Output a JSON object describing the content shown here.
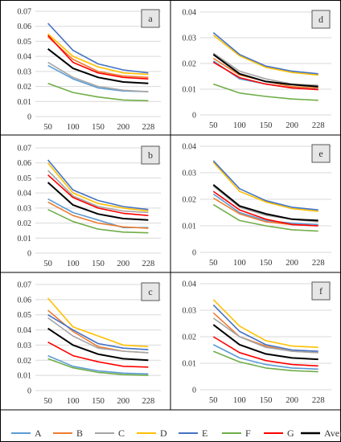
{
  "legend": [
    {
      "name": "A",
      "color": "#5b9bd5"
    },
    {
      "name": "B",
      "color": "#ed7d31"
    },
    {
      "name": "C",
      "color": "#a5a5a5"
    },
    {
      "name": "D",
      "color": "#ffc000"
    },
    {
      "name": "E",
      "color": "#4472c4"
    },
    {
      "name": "F",
      "color": "#70ad47"
    },
    {
      "name": "G",
      "color": "#ff0000"
    },
    {
      "name": "Average",
      "color": "#000000"
    }
  ],
  "chart_data": [
    {
      "type": "line",
      "panel": "a",
      "x": [
        "50",
        "100",
        "150",
        "200",
        "228"
      ],
      "ylim": [
        0,
        0.07
      ],
      "yticks": [
        "0",
        "0.01",
        "0.02",
        "0.03",
        "0.04",
        "0.05",
        "0.06",
        "0.07"
      ],
      "grid": true,
      "series": [
        {
          "name": "A",
          "values": [
            0.034,
            0.025,
            0.019,
            0.017,
            0.0165
          ]
        },
        {
          "name": "B",
          "values": [
            0.053,
            0.038,
            0.03,
            0.027,
            0.026
          ]
        },
        {
          "name": "C",
          "values": [
            0.036,
            0.026,
            0.02,
            0.0175,
            0.0165
          ]
        },
        {
          "name": "D",
          "values": [
            0.055,
            0.04,
            0.033,
            0.029,
            0.028
          ]
        },
        {
          "name": "E",
          "values": [
            0.062,
            0.044,
            0.035,
            0.031,
            0.029
          ]
        },
        {
          "name": "F",
          "values": [
            0.022,
            0.016,
            0.013,
            0.011,
            0.0105
          ]
        },
        {
          "name": "G",
          "values": [
            0.054,
            0.036,
            0.029,
            0.026,
            0.025
          ]
        },
        {
          "name": "Average",
          "values": [
            0.045,
            0.032,
            0.026,
            0.023,
            0.022
          ]
        }
      ]
    },
    {
      "type": "line",
      "panel": "d",
      "x": [
        "50",
        "100",
        "150",
        "200",
        "228"
      ],
      "ylim": [
        0,
        0.04
      ],
      "yticks": [
        "0",
        "0.01",
        "0.02",
        "0.03",
        "0.04"
      ],
      "grid": true,
      "series": [
        {
          "name": "A",
          "values": [
            0.021,
            0.014,
            0.012,
            0.0105,
            0.01
          ]
        },
        {
          "name": "B",
          "values": [
            0.022,
            0.0155,
            0.013,
            0.011,
            0.0105
          ]
        },
        {
          "name": "C",
          "values": [
            0.024,
            0.017,
            0.014,
            0.012,
            0.0115
          ]
        },
        {
          "name": "D",
          "values": [
            0.031,
            0.023,
            0.0185,
            0.0165,
            0.0155
          ]
        },
        {
          "name": "E",
          "values": [
            0.032,
            0.0235,
            0.019,
            0.017,
            0.016
          ]
        },
        {
          "name": "F",
          "values": [
            0.012,
            0.0085,
            0.0072,
            0.0062,
            0.0057
          ]
        },
        {
          "name": "G",
          "values": [
            0.0205,
            0.0145,
            0.012,
            0.0105,
            0.0098
          ]
        },
        {
          "name": "Average",
          "values": [
            0.0235,
            0.016,
            0.013,
            0.0118,
            0.011
          ]
        }
      ]
    },
    {
      "type": "line",
      "panel": "b",
      "x": [
        "50",
        "100",
        "150",
        "200",
        "228"
      ],
      "ylim": [
        0,
        0.07
      ],
      "yticks": [
        "0",
        "0.01",
        "0.02",
        "0.03",
        "0.04",
        "0.05",
        "0.06",
        "0.07"
      ],
      "grid": true,
      "series": [
        {
          "name": "A",
          "values": [
            0.036,
            0.027,
            0.022,
            0.017,
            0.017
          ]
        },
        {
          "name": "B",
          "values": [
            0.034,
            0.025,
            0.02,
            0.0175,
            0.0165
          ]
        },
        {
          "name": "C",
          "values": [
            0.055,
            0.038,
            0.031,
            0.028,
            0.027
          ]
        },
        {
          "name": "D",
          "values": [
            0.06,
            0.04,
            0.033,
            0.03,
            0.028
          ]
        },
        {
          "name": "E",
          "values": [
            0.062,
            0.042,
            0.035,
            0.031,
            0.029
          ]
        },
        {
          "name": "F",
          "values": [
            0.029,
            0.021,
            0.016,
            0.014,
            0.0135
          ]
        },
        {
          "name": "G",
          "values": [
            0.052,
            0.037,
            0.03,
            0.0265,
            0.025
          ]
        },
        {
          "name": "Average",
          "values": [
            0.047,
            0.032,
            0.026,
            0.023,
            0.022
          ]
        }
      ]
    },
    {
      "type": "line",
      "panel": "e",
      "x": [
        "50",
        "100",
        "150",
        "200",
        "228"
      ],
      "ylim": [
        0,
        0.04
      ],
      "yticks": [
        "0",
        "0.01",
        "0.02",
        "0.03",
        "0.04"
      ],
      "grid": true,
      "series": [
        {
          "name": "A",
          "values": [
            0.022,
            0.015,
            0.012,
            0.011,
            0.0105
          ]
        },
        {
          "name": "B",
          "values": [
            0.0205,
            0.0145,
            0.0115,
            0.0105,
            0.01
          ]
        },
        {
          "name": "C",
          "values": [
            0.025,
            0.017,
            0.014,
            0.0125,
            0.0115
          ]
        },
        {
          "name": "D",
          "values": [
            0.034,
            0.023,
            0.019,
            0.0165,
            0.0155
          ]
        },
        {
          "name": "E",
          "values": [
            0.0345,
            0.024,
            0.0195,
            0.017,
            0.016
          ]
        },
        {
          "name": "F",
          "values": [
            0.018,
            0.012,
            0.01,
            0.0085,
            0.008
          ]
        },
        {
          "name": "G",
          "values": [
            0.023,
            0.016,
            0.0125,
            0.0105,
            0.01
          ]
        },
        {
          "name": "Average",
          "values": [
            0.0255,
            0.0175,
            0.0145,
            0.0125,
            0.012
          ]
        }
      ]
    },
    {
      "type": "line",
      "panel": "c",
      "x": [
        "50",
        "100",
        "150",
        "200",
        "228"
      ],
      "ylim": [
        0,
        0.07
      ],
      "yticks": [
        "0",
        "0.01",
        "0.02",
        "0.03",
        "0.04",
        "0.05",
        "0.06",
        "0.07"
      ],
      "grid": true,
      "series": [
        {
          "name": "A",
          "values": [
            0.023,
            0.016,
            0.013,
            0.0115,
            0.011
          ]
        },
        {
          "name": "B",
          "values": [
            0.053,
            0.039,
            0.029,
            0.026,
            0.025
          ]
        },
        {
          "name": "C",
          "values": [
            0.048,
            0.036,
            0.028,
            0.026,
            0.025
          ]
        },
        {
          "name": "D",
          "values": [
            0.061,
            0.042,
            0.036,
            0.03,
            0.029
          ]
        },
        {
          "name": "E",
          "values": [
            0.05,
            0.04,
            0.031,
            0.028,
            0.027
          ]
        },
        {
          "name": "F",
          "values": [
            0.021,
            0.015,
            0.012,
            0.0105,
            0.01
          ]
        },
        {
          "name": "G",
          "values": [
            0.032,
            0.023,
            0.019,
            0.016,
            0.0155
          ]
        },
        {
          "name": "Average",
          "values": [
            0.041,
            0.03,
            0.024,
            0.021,
            0.02
          ]
        }
      ]
    },
    {
      "type": "line",
      "panel": "f",
      "x": [
        "50",
        "100",
        "150",
        "200",
        "228"
      ],
      "ylim": [
        0,
        0.04
      ],
      "yticks": [
        "0",
        "0.01",
        "0.02",
        "0.03",
        "0.04"
      ],
      "grid": true,
      "series": [
        {
          "name": "A",
          "values": [
            0.017,
            0.012,
            0.0095,
            0.0082,
            0.0078
          ]
        },
        {
          "name": "B",
          "values": [
            0.029,
            0.02,
            0.0165,
            0.0145,
            0.014
          ]
        },
        {
          "name": "C",
          "values": [
            0.027,
            0.02,
            0.016,
            0.0145,
            0.014
          ]
        },
        {
          "name": "D",
          "values": [
            0.034,
            0.024,
            0.0185,
            0.0165,
            0.016
          ]
        },
        {
          "name": "E",
          "values": [
            0.032,
            0.022,
            0.017,
            0.015,
            0.0145
          ]
        },
        {
          "name": "F",
          "values": [
            0.0145,
            0.0105,
            0.0082,
            0.0072,
            0.0068
          ]
        },
        {
          "name": "G",
          "values": [
            0.02,
            0.014,
            0.011,
            0.0095,
            0.009
          ]
        },
        {
          "name": "Average",
          "values": [
            0.0245,
            0.017,
            0.0135,
            0.012,
            0.0115
          ]
        }
      ]
    }
  ]
}
